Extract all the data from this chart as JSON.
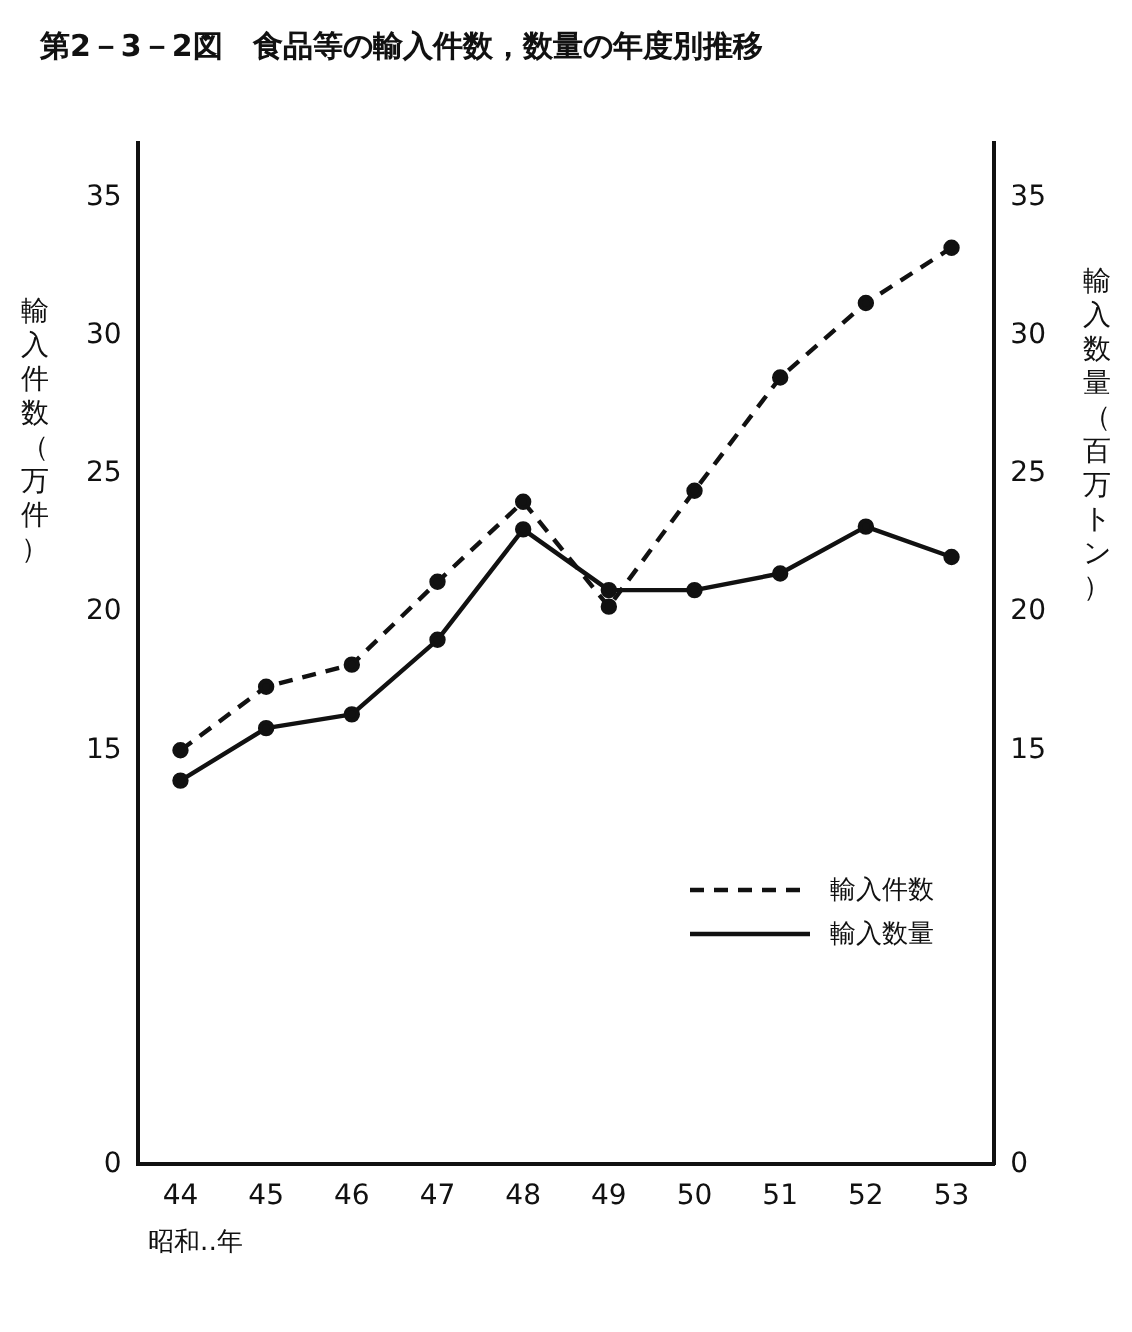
{
  "chart_data": {
    "type": "line",
    "title": "第2－3－2図　食品等の輸入件数，数量の年度別推移",
    "xlabel": "昭和‥年",
    "ylabel": "輸入件数（万件）",
    "y2label": "輸入数量（百万トン）",
    "categories": [
      "44",
      "45",
      "46",
      "47",
      "48",
      "49",
      "50",
      "51",
      "52",
      "53"
    ],
    "series": [
      {
        "name": "輸入件数",
        "color": "#111111",
        "line_style": "dashed",
        "values": [
          15.0,
          17.3,
          18.1,
          21.1,
          24.0,
          20.2,
          24.4,
          28.5,
          31.2,
          33.2
        ]
      },
      {
        "name": "輸入数量",
        "color": "#111111",
        "line_style": "solid",
        "axis": "y2",
        "values": [
          13.9,
          15.8,
          16.3,
          19.0,
          23.0,
          20.8,
          20.8,
          21.4,
          23.1,
          22.0
        ]
      }
    ],
    "ylim": [
      0,
      37
    ],
    "yticks": [
      0,
      15,
      20,
      25,
      30,
      35
    ],
    "y2lim": [
      0,
      37
    ],
    "y2ticks": [
      0,
      15,
      20,
      25,
      30,
      35
    ],
    "grid": false,
    "legend": "bottom right",
    "marker": "circle"
  }
}
